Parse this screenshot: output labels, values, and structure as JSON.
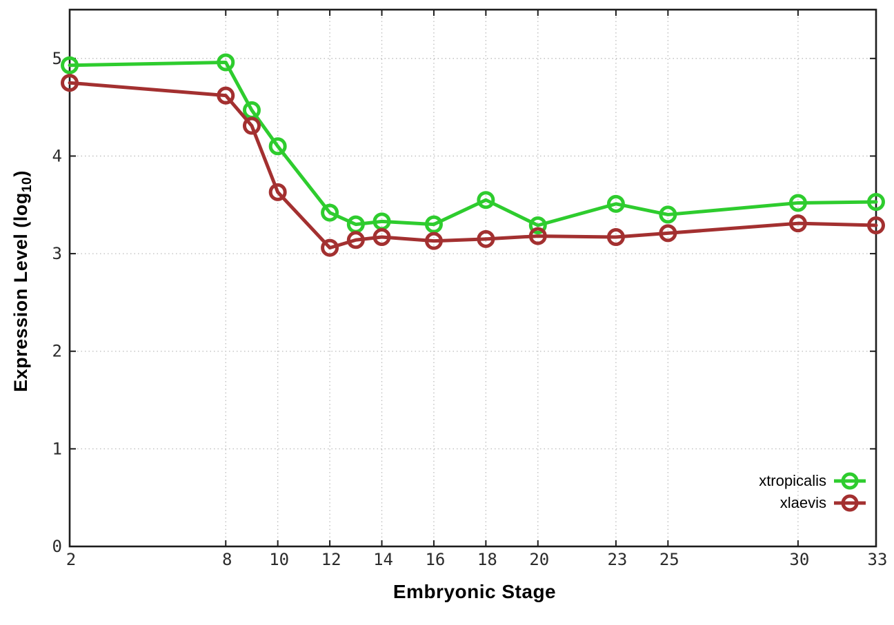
{
  "chart_data": {
    "type": "line",
    "title": "",
    "xlabel": "Embryonic Stage",
    "ylabel": {
      "base": "Expression Level (log",
      "sub": "10",
      "close": ")"
    },
    "xlim": [
      2,
      33
    ],
    "ylim": [
      0,
      5.5
    ],
    "xticks": [
      2,
      8,
      10,
      12,
      14,
      16,
      18,
      20,
      23,
      25,
      30,
      33
    ],
    "yticks": [
      0,
      1,
      2,
      3,
      4,
      5
    ],
    "grid": "dotted",
    "legend_position": "inside-bottom-right",
    "x": [
      2,
      8,
      9,
      10,
      12,
      13,
      14,
      16,
      18,
      20,
      23,
      25,
      30,
      33
    ],
    "series": [
      {
        "name": "xtropicalis",
        "color": "#2ecc2e",
        "marker": "open-circle",
        "values": [
          4.93,
          4.96,
          4.47,
          4.1,
          3.42,
          3.3,
          3.33,
          3.3,
          3.55,
          3.29,
          3.51,
          3.4,
          3.52,
          3.53
        ]
      },
      {
        "name": "xlaevis",
        "color": "#a33030",
        "marker": "open-circle",
        "values": [
          4.75,
          4.62,
          4.31,
          3.63,
          3.06,
          3.14,
          3.17,
          3.13,
          3.15,
          3.18,
          3.17,
          3.21,
          3.31,
          3.29
        ]
      }
    ],
    "palette": {
      "background": "#ffffff",
      "grid": "#bbbbbb",
      "axis": "#1d1d1d",
      "tick_labels": "#2b2b2b"
    }
  }
}
